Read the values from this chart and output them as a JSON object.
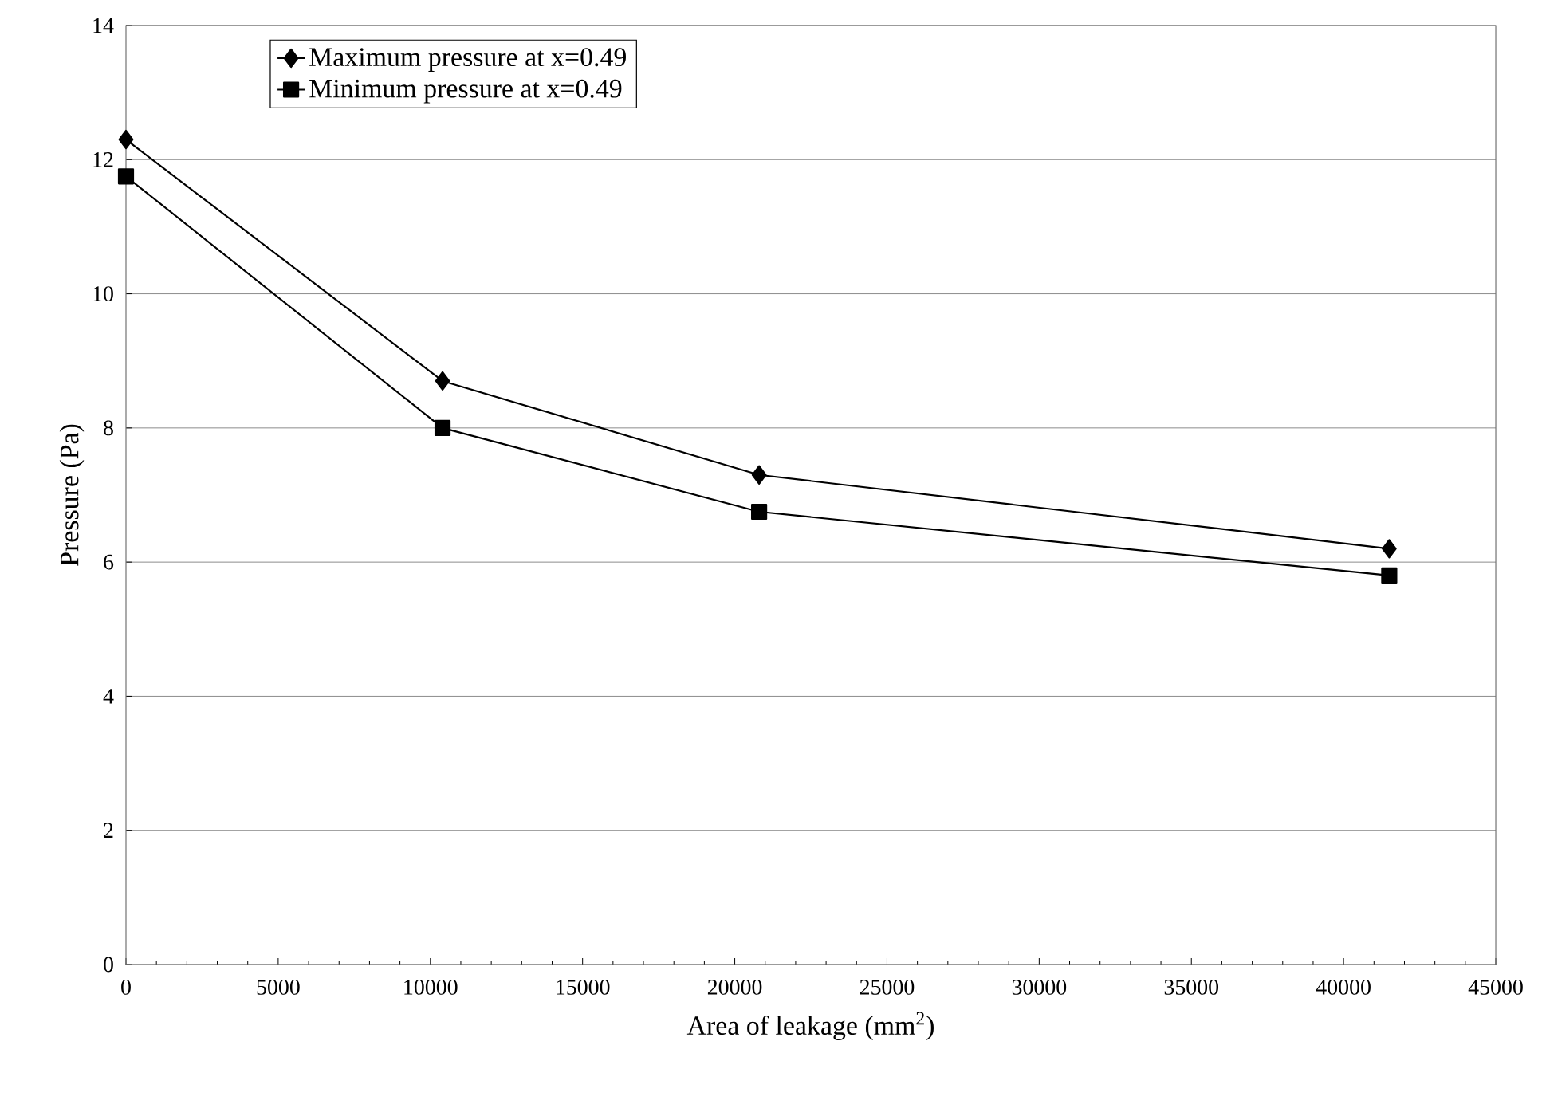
{
  "chart_data": {
    "type": "line",
    "xlabel": "Area of leakage (mm$^{2}$)",
    "ylabel": "Pressure (Pa)",
    "x": [
      0,
      10400,
      20800,
      41500
    ],
    "series": [
      {
        "name": "Maximum pressure at x=0.49",
        "color": "#000000",
        "marker": "diamond",
        "values": [
          12.3,
          8.7,
          7.3,
          6.2
        ]
      },
      {
        "name": "Minimum pressure at x=0.49",
        "color": "#000000",
        "marker": "square",
        "values": [
          11.75,
          8.0,
          6.75,
          5.8
        ]
      }
    ],
    "xlim": [
      0,
      45000
    ],
    "xticks": [
      0,
      5000,
      10000,
      15000,
      20000,
      25000,
      30000,
      35000,
      40000,
      45000
    ],
    "ylim": [
      0,
      14
    ],
    "yticks": [
      0,
      2,
      4,
      6,
      8,
      10,
      12,
      14
    ],
    "grid": "y",
    "legend": "top left",
    "line_style": "solid"
  }
}
